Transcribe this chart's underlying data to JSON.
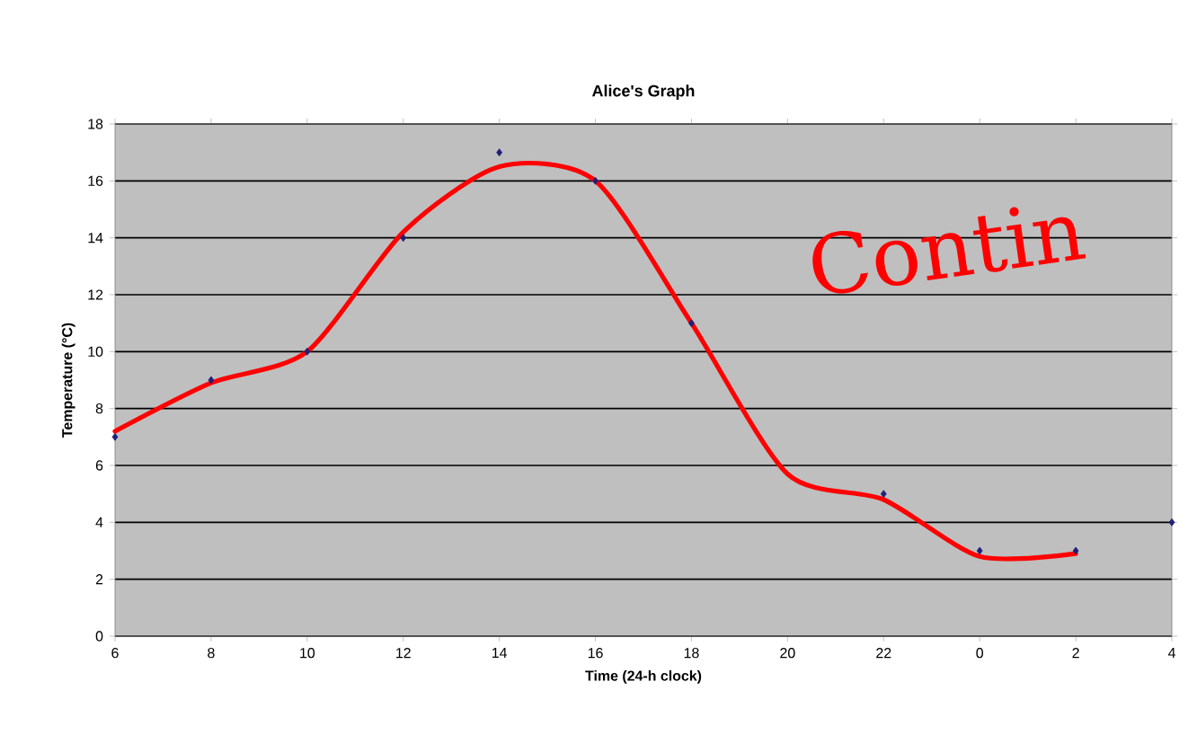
{
  "chart_data": {
    "type": "scatter",
    "title": "Alice's Graph",
    "xlabel": "Time (24-h clock)",
    "ylabel": "Temperature (°C)",
    "categories": [
      "6",
      "8",
      "10",
      "12",
      "14",
      "16",
      "18",
      "20",
      "22",
      "0",
      "2",
      "4"
    ],
    "ylim": [
      0,
      18
    ],
    "yticks": [
      0,
      2,
      4,
      6,
      8,
      10,
      12,
      14,
      16,
      18
    ],
    "grid": "y",
    "marker": "diamond",
    "annotations": [
      "Contin"
    ],
    "series": [
      {
        "color": "#1f1f7a",
        "values": [
          7,
          9,
          10,
          14,
          17,
          16,
          11,
          null,
          5,
          3,
          3,
          4
        ]
      },
      {
        "type": "line",
        "color": "#ff0000",
        "marker": "none",
        "line_style": "solid",
        "values": [
          7.2,
          8.9,
          10,
          14.2,
          16.5,
          16,
          11,
          5.7,
          4.8,
          2.8,
          2.9,
          null
        ]
      }
    ]
  }
}
